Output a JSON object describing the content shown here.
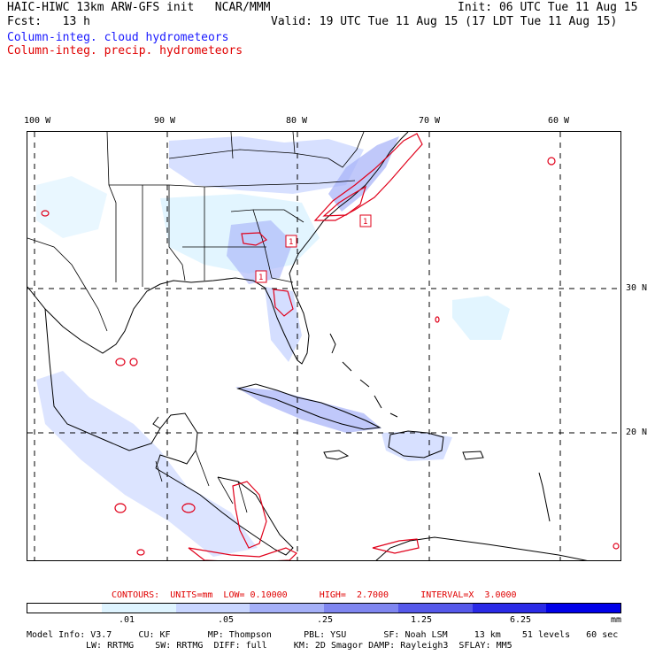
{
  "header": {
    "title_left": "HAIC-HIWC 13km ARW-GFS init   NCAR/MMM",
    "init": "Init: 06 UTC Tue 11 Aug 15",
    "fcst": "Fcst:   13 h",
    "valid": "Valid: 19 UTC Tue 11 Aug 15 (17 LDT Tue 11 Aug 15)",
    "field_cloud": "Column-integ. cloud hydrometeors",
    "field_precip": "Column-integ. precip. hydrometeors"
  },
  "axes": {
    "lon_labels": [
      "100 W",
      "90 W",
      "80 W",
      "70 W",
      "60 W"
    ],
    "lat_labels": [
      "30 N",
      "20 N"
    ]
  },
  "contour_info": {
    "text": "CONTOURS:  UNITS=mm  LOW= 0.10000      HIGH=  2.7000      INTERVAL=X  3.0000"
  },
  "colorbar": {
    "colors": [
      "#ffffff",
      "#dff4ff",
      "#c9d6ff",
      "#a5b0f8",
      "#7f86f0",
      "#5558ea",
      "#2a2ae6",
      "#0000e8"
    ],
    "labels": [
      ".01",
      ".05",
      ".25",
      "1.25",
      "6.25"
    ],
    "unit": "mm"
  },
  "model_info": {
    "line1": "Model Info: V3.7     CU: KF       MP: Thompson      PBL: YSU       SF: Noah LSM     13 km    51 levels   60 sec",
    "line2": "LW: RRTMG    SW: RRTMG  DIFF: full     KM: 2D Smagor DAMP: Rayleigh3  SFLAY: MM5"
  },
  "map": {
    "land_color": "#000000",
    "precip_color": "#e0001a",
    "grid_color": "#000000",
    "contour_labels": [
      "1",
      "1",
      "1"
    ]
  }
}
